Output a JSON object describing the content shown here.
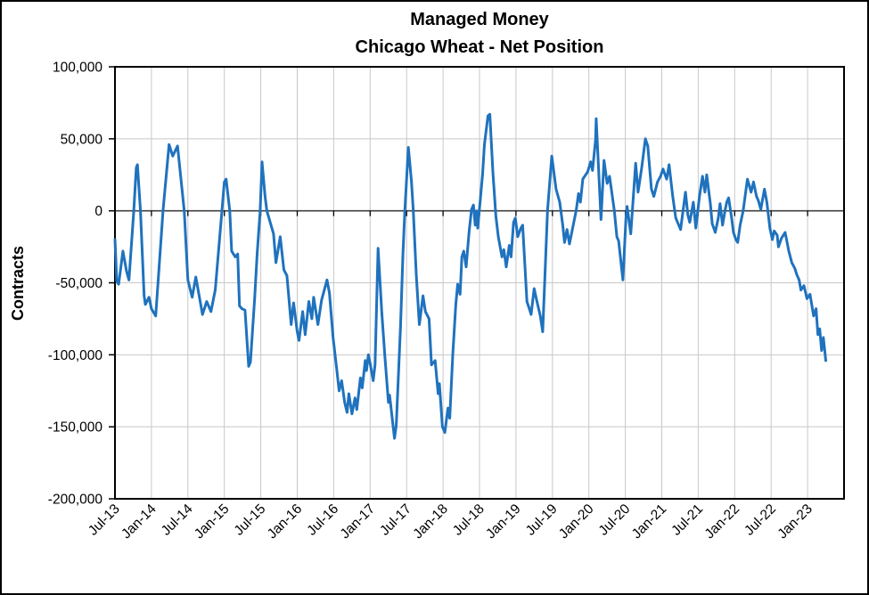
{
  "chart_data": {
    "type": "line",
    "title": "Managed Money",
    "subtitle": "Chicago Wheat - Net Position",
    "ylabel": "Contracts",
    "ylim": [
      -200000,
      100000
    ],
    "y_tick_step": 50000,
    "y_tick_labels": [
      "100,000",
      "50,000",
      "0",
      "-50,000",
      "-100,000",
      "-150,000",
      "-200,000"
    ],
    "grid": true,
    "legend": "none",
    "x_unit": "months_since_Jul-2013",
    "x_tick_interval_months": 6,
    "x_tick_labels": [
      "Jul-13",
      "Jan-14",
      "Jul-14",
      "Jan-15",
      "Jul-15",
      "Jan-16",
      "Jul-16",
      "Jan-17",
      "Jul-17",
      "Jan-18",
      "Jul-18",
      "Jan-19",
      "Jul-19",
      "Jan-20",
      "Jul-20",
      "Jan-21",
      "Jul-21",
      "Jan-22",
      "Jul-22",
      "Jan-23"
    ],
    "x_months_total": 120,
    "series": [
      {
        "color": "#1F72BE",
        "points": [
          [
            0,
            -20000
          ],
          [
            0.3,
            -49000
          ],
          [
            0.6,
            -51000
          ],
          [
            1.3,
            -28000
          ],
          [
            1.9,
            -42000
          ],
          [
            2.3,
            -48000
          ],
          [
            3.1,
            0
          ],
          [
            3.5,
            30000
          ],
          [
            3.7,
            32000
          ],
          [
            4.2,
            0
          ],
          [
            4.8,
            -59000
          ],
          [
            5,
            -65000
          ],
          [
            5.6,
            -60000
          ],
          [
            6,
            -68000
          ],
          [
            6.7,
            -73000
          ],
          [
            7.9,
            0
          ],
          [
            8.9,
            46000
          ],
          [
            9.5,
            38000
          ],
          [
            10.3,
            45000
          ],
          [
            11.4,
            0
          ],
          [
            12,
            -48000
          ],
          [
            12.7,
            -60000
          ],
          [
            13.3,
            -46000
          ],
          [
            14.4,
            -72000
          ],
          [
            15.1,
            -63000
          ],
          [
            15.8,
            -70000
          ],
          [
            16.5,
            -55000
          ],
          [
            17.6,
            0
          ],
          [
            18,
            20000
          ],
          [
            18.3,
            22000
          ],
          [
            18.9,
            0
          ],
          [
            19.2,
            -28000
          ],
          [
            19.8,
            -32000
          ],
          [
            20.2,
            -30000
          ],
          [
            20.5,
            -66000
          ],
          [
            20.9,
            -68000
          ],
          [
            21.4,
            -69000
          ],
          [
            22,
            -108000
          ],
          [
            22.3,
            -105000
          ],
          [
            23,
            -60000
          ],
          [
            23.4,
            -30000
          ],
          [
            23.9,
            0
          ],
          [
            24.2,
            34000
          ],
          [
            24.7,
            10000
          ],
          [
            25,
            0
          ],
          [
            26.1,
            -16000
          ],
          [
            26.5,
            -36000
          ],
          [
            27.2,
            -18000
          ],
          [
            27.8,
            -41000
          ],
          [
            28.3,
            -45000
          ],
          [
            29,
            -79000
          ],
          [
            29.4,
            -64000
          ],
          [
            30,
            -84000
          ],
          [
            30.3,
            -90000
          ],
          [
            30.9,
            -70000
          ],
          [
            31.3,
            -86000
          ],
          [
            31.9,
            -63000
          ],
          [
            32.4,
            -75000
          ],
          [
            32.7,
            -60000
          ],
          [
            33.4,
            -79000
          ],
          [
            34,
            -62000
          ],
          [
            34.9,
            -48000
          ],
          [
            35.3,
            -57000
          ],
          [
            35.9,
            -88000
          ],
          [
            36.5,
            -110000
          ],
          [
            36.9,
            -125000
          ],
          [
            37.3,
            -118000
          ],
          [
            37.8,
            -133000
          ],
          [
            38.2,
            -140000
          ],
          [
            38.5,
            -127000
          ],
          [
            39,
            -141000
          ],
          [
            39.5,
            -130000
          ],
          [
            39.8,
            -138000
          ],
          [
            40.4,
            -116000
          ],
          [
            40.7,
            -123000
          ],
          [
            41.2,
            -104000
          ],
          [
            41.4,
            -111000
          ],
          [
            41.7,
            -100000
          ],
          [
            42,
            -106000
          ],
          [
            42.5,
            -118000
          ],
          [
            42.8,
            -107000
          ],
          [
            43.3,
            -26000
          ],
          [
            43.9,
            -70000
          ],
          [
            44.4,
            -100000
          ],
          [
            45,
            -133000
          ],
          [
            45.2,
            -128000
          ],
          [
            46,
            -158000
          ],
          [
            46.3,
            -149000
          ],
          [
            47,
            -80000
          ],
          [
            47.4,
            -30000
          ],
          [
            47.7,
            0
          ],
          [
            48.3,
            44000
          ],
          [
            48.8,
            20000
          ],
          [
            49.1,
            0
          ],
          [
            49.6,
            -45000
          ],
          [
            50.1,
            -79000
          ],
          [
            50.7,
            -59000
          ],
          [
            51.1,
            -70000
          ],
          [
            51.7,
            -75000
          ],
          [
            52.1,
            -107000
          ],
          [
            52.7,
            -104000
          ],
          [
            53.2,
            -127000
          ],
          [
            53.4,
            -120000
          ],
          [
            53.9,
            -150000
          ],
          [
            54.3,
            -154000
          ],
          [
            54.8,
            -137000
          ],
          [
            55.1,
            -144000
          ],
          [
            55.6,
            -100000
          ],
          [
            56.1,
            -65000
          ],
          [
            56.4,
            -51000
          ],
          [
            56.8,
            -58000
          ],
          [
            57.1,
            -32000
          ],
          [
            57.4,
            -28000
          ],
          [
            57.8,
            -39000
          ],
          [
            58.3,
            -14000
          ],
          [
            58.7,
            1000
          ],
          [
            59,
            4000
          ],
          [
            59.3,
            -10000
          ],
          [
            59.5,
            0
          ],
          [
            59.7,
            -12000
          ],
          [
            60.5,
            25000
          ],
          [
            60.8,
            46000
          ],
          [
            61.4,
            66000
          ],
          [
            61.7,
            67000
          ],
          [
            62.2,
            27000
          ],
          [
            62.7,
            -4000
          ],
          [
            63.1,
            -18000
          ],
          [
            63.7,
            -32000
          ],
          [
            64,
            -27000
          ],
          [
            64.4,
            -39000
          ],
          [
            64.9,
            -24000
          ],
          [
            65.2,
            -32000
          ],
          [
            65.6,
            -8000
          ],
          [
            65.9,
            -5000
          ],
          [
            66.3,
            -18000
          ],
          [
            66.8,
            -12000
          ],
          [
            67.1,
            -10000
          ],
          [
            67.8,
            -63000
          ],
          [
            68.2,
            -68000
          ],
          [
            68.5,
            -72000
          ],
          [
            69,
            -54000
          ],
          [
            69.4,
            -62000
          ],
          [
            70,
            -73000
          ],
          [
            70.4,
            -84000
          ],
          [
            71.2,
            0
          ],
          [
            71.9,
            38000
          ],
          [
            72.6,
            15000
          ],
          [
            73.2,
            6000
          ],
          [
            73.7,
            -10000
          ],
          [
            74,
            -22000
          ],
          [
            74.4,
            -13000
          ],
          [
            74.8,
            -23000
          ],
          [
            75.9,
            0
          ],
          [
            76.3,
            12000
          ],
          [
            76.6,
            6000
          ],
          [
            77,
            22000
          ],
          [
            77.8,
            27000
          ],
          [
            78.3,
            34000
          ],
          [
            78.6,
            28000
          ],
          [
            79.1,
            49000
          ],
          [
            79.2,
            64000
          ],
          [
            79.7,
            20000
          ],
          [
            80,
            -6000
          ],
          [
            80.5,
            35000
          ],
          [
            81,
            19000
          ],
          [
            81.4,
            24000
          ],
          [
            82.2,
            0
          ],
          [
            82.6,
            -18000
          ],
          [
            82.9,
            -21000
          ],
          [
            83.6,
            -48000
          ],
          [
            84.1,
            -5000
          ],
          [
            84.3,
            3000
          ],
          [
            84.9,
            -16000
          ],
          [
            85.7,
            33000
          ],
          [
            86.1,
            13000
          ],
          [
            86.7,
            30000
          ],
          [
            87.3,
            50000
          ],
          [
            87.7,
            45000
          ],
          [
            88.3,
            15000
          ],
          [
            88.7,
            10000
          ],
          [
            89.3,
            20000
          ],
          [
            89.8,
            24000
          ],
          [
            90.2,
            29000
          ],
          [
            90.8,
            22000
          ],
          [
            91.2,
            32000
          ],
          [
            91.8,
            10000
          ],
          [
            92.3,
            -5000
          ],
          [
            92.7,
            -9000
          ],
          [
            93.1,
            -13000
          ],
          [
            93.9,
            13000
          ],
          [
            94.3,
            -3000
          ],
          [
            94.6,
            -8000
          ],
          [
            95.2,
            6000
          ],
          [
            95.6,
            -12000
          ],
          [
            96.2,
            10000
          ],
          [
            96.7,
            24000
          ],
          [
            97.1,
            13000
          ],
          [
            97.4,
            25000
          ],
          [
            98,
            5000
          ],
          [
            98.3,
            -9000
          ],
          [
            98.8,
            -15000
          ],
          [
            99.3,
            -5000
          ],
          [
            99.6,
            5000
          ],
          [
            100,
            -10000
          ],
          [
            100.4,
            0
          ],
          [
            100.7,
            6000
          ],
          [
            101,
            9000
          ],
          [
            101.5,
            -5000
          ],
          [
            101.8,
            -15000
          ],
          [
            102.2,
            -20000
          ],
          [
            102.5,
            -22000
          ],
          [
            102.9,
            -10000
          ],
          [
            103.4,
            0
          ],
          [
            104.1,
            22000
          ],
          [
            104.7,
            13000
          ],
          [
            105.1,
            20000
          ],
          [
            105.6,
            10000
          ],
          [
            105.9,
            7000
          ],
          [
            106.3,
            1000
          ],
          [
            106.9,
            15000
          ],
          [
            107.3,
            6000
          ],
          [
            107.8,
            -12000
          ],
          [
            108.2,
            -20000
          ],
          [
            108.5,
            -14000
          ],
          [
            109,
            -17000
          ],
          [
            109.2,
            -25000
          ],
          [
            109.7,
            -19000
          ],
          [
            110.3,
            -15000
          ],
          [
            110.9,
            -28000
          ],
          [
            111.4,
            -36000
          ],
          [
            111.9,
            -40000
          ],
          [
            112.2,
            -44000
          ],
          [
            112.6,
            -48000
          ],
          [
            112.9,
            -55000
          ],
          [
            113.4,
            -52000
          ],
          [
            113.9,
            -61000
          ],
          [
            114.4,
            -58000
          ],
          [
            115,
            -73000
          ],
          [
            115.4,
            -68000
          ],
          [
            115.7,
            -86000
          ],
          [
            116,
            -82000
          ],
          [
            116.3,
            -97000
          ],
          [
            116.6,
            -88000
          ],
          [
            117,
            -104000
          ]
        ]
      }
    ]
  },
  "colors": {
    "line": "#1F72BE",
    "gridline": "#C8C8C8",
    "zero_line": "#404040",
    "axis": "#000000",
    "background": "#FFFFFF"
  }
}
